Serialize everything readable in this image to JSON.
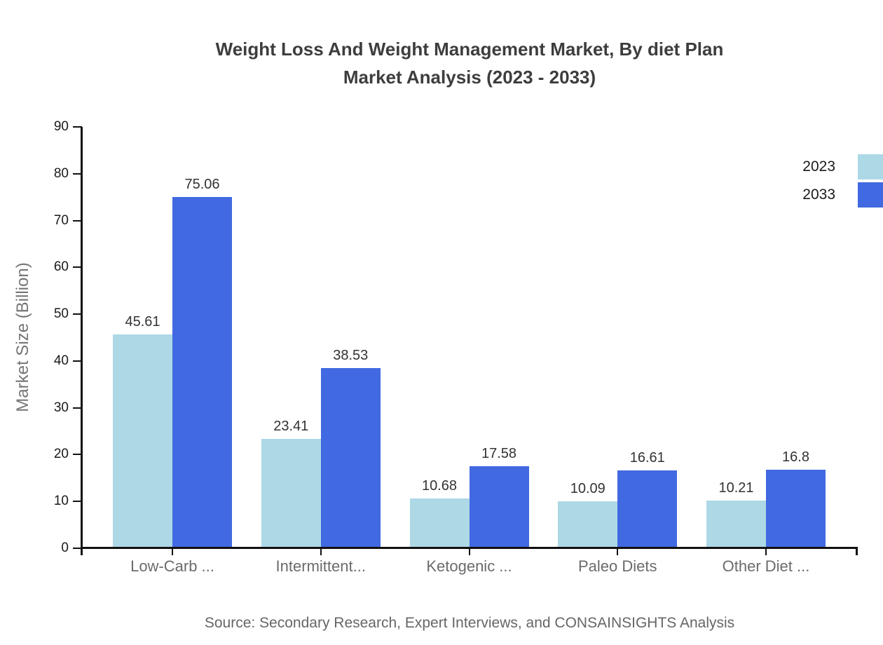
{
  "title": {
    "line1": "Weight Loss And Weight Management Market, By diet Plan",
    "line2": "Market Analysis (2023 - 2033)"
  },
  "source": "Source: Secondary Research, Expert Interviews, and CONSAINSIGHTS Analysis",
  "chart_data": {
    "type": "bar",
    "title": "Weight Loss And Weight Management Market, By diet Plan Market Analysis (2023 - 2033)",
    "categories": [
      "Low-Carb ...",
      "Intermittent...",
      "Ketogenic ...",
      "Paleo Diets",
      "Other Diet ..."
    ],
    "series": [
      {
        "name": "2023",
        "color": "#ADD8E6",
        "values": [
          45.61,
          23.41,
          10.68,
          10.09,
          10.21
        ]
      },
      {
        "name": "2033",
        "color": "#4169E1",
        "values": [
          75.06,
          38.53,
          17.58,
          16.61,
          16.8
        ]
      }
    ],
    "xlabel": "",
    "ylabel": "Market Size (Billion)",
    "ylim": [
      0,
      90
    ],
    "yticks": [
      0,
      10,
      20,
      30,
      40,
      50,
      60,
      70,
      80,
      90
    ],
    "grid": false,
    "legend_position": "top-right",
    "bar_value_labels_shown": true
  },
  "colors": {
    "series_2023": "#ADD8E6",
    "series_2033": "#4169E1",
    "title_text": "#3d3d3d",
    "axis_line": "#111111",
    "category_label_text": "#6b6b6b",
    "value_label_text": "#333333",
    "source_text": "#666666"
  }
}
